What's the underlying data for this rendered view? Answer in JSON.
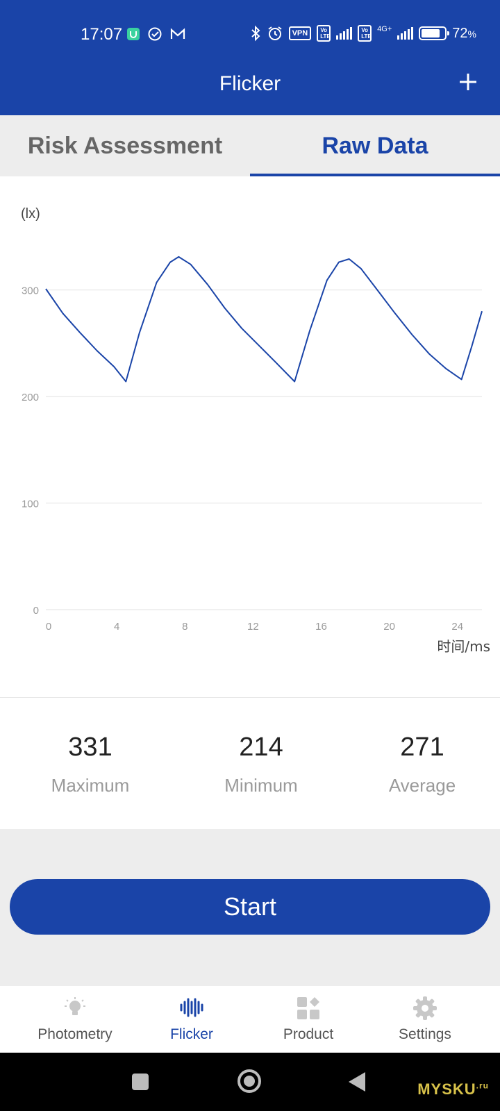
{
  "status_bar": {
    "time": "17:07",
    "vpn_badge": "VPN",
    "volte_badge_1": "Vo LTE",
    "volte_badge_2": "Vo LTE",
    "network": "4G+",
    "battery": "72",
    "battery_unit": "%"
  },
  "app_bar": {
    "title": "Flicker",
    "add_icon": "plus-icon"
  },
  "tabs": [
    {
      "label": "Risk Assessment",
      "active": false
    },
    {
      "label": "Raw Data",
      "active": true
    }
  ],
  "chart_data": {
    "type": "line",
    "y_unit_label": "(lx)",
    "xlabel": "时间/ms",
    "xlim": [
      0,
      25.6
    ],
    "ylim": [
      0,
      300
    ],
    "x_ticks": [
      0,
      4,
      8,
      12,
      16,
      20,
      24
    ],
    "y_ticks": [
      0,
      100,
      200,
      300
    ],
    "grid": true,
    "line_color": "#1a44a8",
    "series": [
      {
        "values": [
          {
            "x": 0,
            "y": 301
          },
          {
            "x": 1,
            "y": 278
          },
          {
            "x": 2,
            "y": 260
          },
          {
            "x": 3,
            "y": 243
          },
          {
            "x": 4,
            "y": 228
          },
          {
            "x": 4.7,
            "y": 214
          },
          {
            "x": 5.5,
            "y": 260
          },
          {
            "x": 6.5,
            "y": 307
          },
          {
            "x": 7.3,
            "y": 326
          },
          {
            "x": 7.8,
            "y": 331
          },
          {
            "x": 8.5,
            "y": 324
          },
          {
            "x": 9.5,
            "y": 305
          },
          {
            "x": 10.5,
            "y": 283
          },
          {
            "x": 11.5,
            "y": 264
          },
          {
            "x": 12.5,
            "y": 248
          },
          {
            "x": 13.5,
            "y": 232
          },
          {
            "x": 14.6,
            "y": 214
          },
          {
            "x": 15.5,
            "y": 262
          },
          {
            "x": 16.5,
            "y": 309
          },
          {
            "x": 17.2,
            "y": 326
          },
          {
            "x": 17.8,
            "y": 329
          },
          {
            "x": 18.5,
            "y": 320
          },
          {
            "x": 19.5,
            "y": 299
          },
          {
            "x": 20.5,
            "y": 278
          },
          {
            "x": 21.5,
            "y": 258
          },
          {
            "x": 22.5,
            "y": 240
          },
          {
            "x": 23.5,
            "y": 226
          },
          {
            "x": 24.4,
            "y": 216
          },
          {
            "x": 25,
            "y": 247
          },
          {
            "x": 25.6,
            "y": 280
          }
        ]
      }
    ]
  },
  "stats": [
    {
      "value": "331",
      "label": "Maximum"
    },
    {
      "value": "214",
      "label": "Minimum"
    },
    {
      "value": "271",
      "label": "Average"
    }
  ],
  "start_button": {
    "label": "Start"
  },
  "bottom_nav": [
    {
      "label": "Photometry",
      "icon": "lightbulb-icon",
      "active": false
    },
    {
      "label": "Flicker",
      "icon": "waveform-icon",
      "active": true
    },
    {
      "label": "Product",
      "icon": "grid-icon",
      "active": false
    },
    {
      "label": "Settings",
      "icon": "gear-icon",
      "active": false
    }
  ],
  "watermark": {
    "text": "MYSKU",
    "suffix": ".ru"
  },
  "colors": {
    "primary": "#1a44a8",
    "tab_inactive": "#666666",
    "label_gray": "#9a9a9a",
    "background_gray": "#ededed"
  }
}
